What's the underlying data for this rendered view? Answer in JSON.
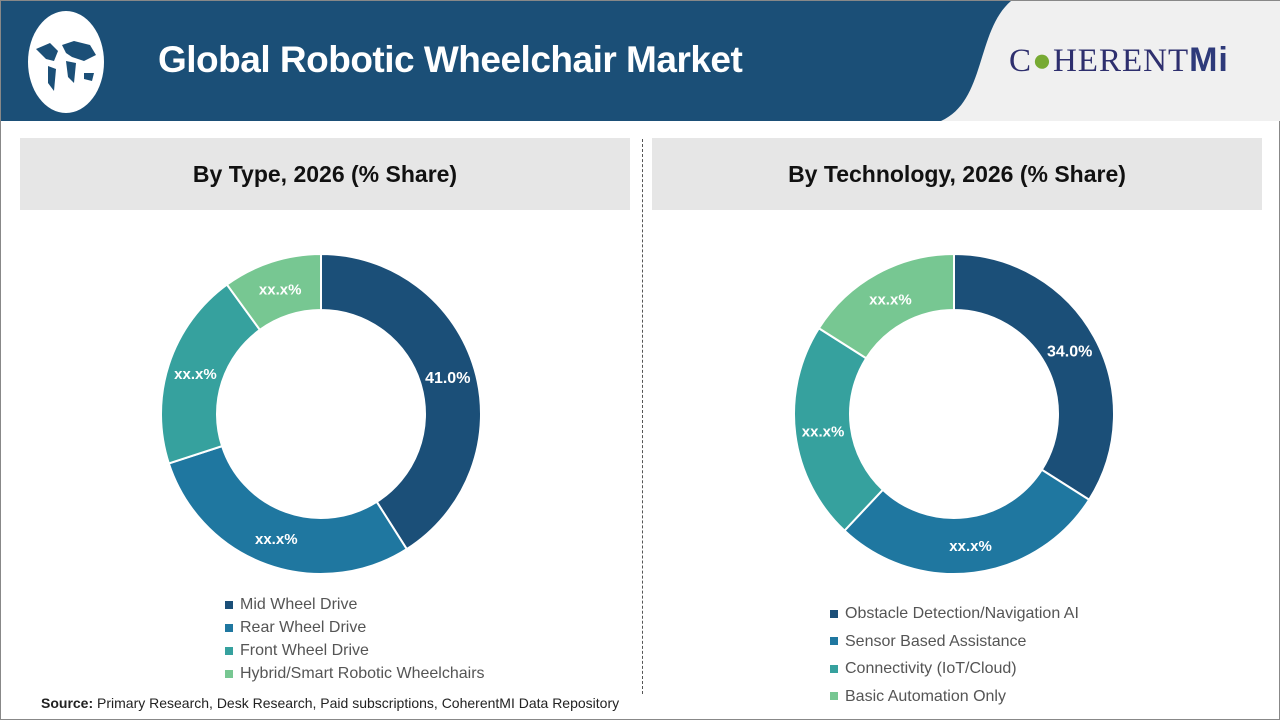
{
  "header": {
    "title": "Global Robotic Wheelchair Market",
    "logo_text": "COHERENTMI",
    "header_color": "#1b4f77"
  },
  "chart_data": [
    {
      "type": "pie",
      "variant": "donut",
      "title": "By Type, 2026 (% Share)",
      "categories": [
        "Mid Wheel Drive",
        "Rear Wheel Drive",
        "Front Wheel Drive",
        "Hybrid/Smart Robotic Wheelchairs"
      ],
      "values": [
        41.0,
        29,
        20,
        10
      ],
      "data_labels": [
        "41.0%",
        "xx.x%",
        "xx.x%",
        "xx.x%"
      ],
      "colors": [
        "#1b4f78",
        "#1f77a0",
        "#36a19e",
        "#77c792"
      ],
      "legend": "bottom"
    },
    {
      "type": "pie",
      "variant": "donut",
      "title": "By Technology, 2026 (% Share)",
      "categories": [
        "Obstacle Detection/Navigation AI",
        "Sensor Based Assistance",
        "Connectivity (IoT/Cloud)",
        "Basic Automation Only"
      ],
      "values": [
        34.0,
        28,
        22,
        16
      ],
      "data_labels": [
        "34.0%",
        "xx.x%",
        "xx.x%",
        "xx.x%"
      ],
      "colors": [
        "#1b4f78",
        "#1f77a0",
        "#36a19e",
        "#77c792"
      ],
      "legend": "bottom"
    }
  ],
  "source": {
    "label": "Source:",
    "text": " Primary Research, Desk Research, Paid subscriptions, CoherentMI Data Repository"
  }
}
